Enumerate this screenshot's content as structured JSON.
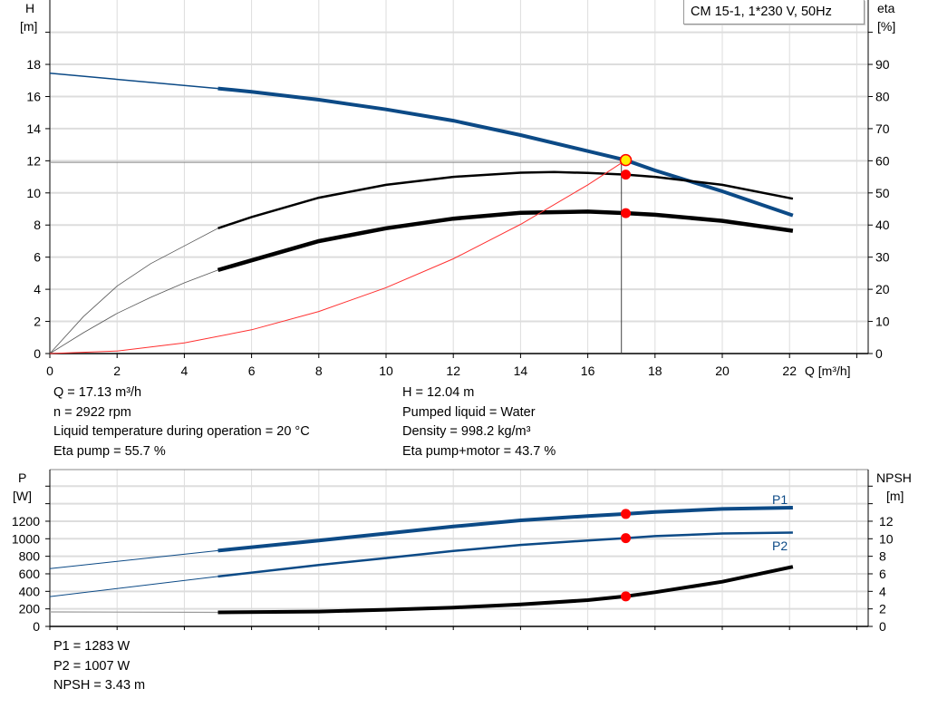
{
  "chart_data": [
    {
      "type": "line",
      "title": "CM 15-1, 1*230 V, 50Hz",
      "xlabel": "Q [m³/h]",
      "ylabel": "H [m]",
      "ylabel_name": "H",
      "ylabel_unit": "[m]",
      "y2label_name": "eta",
      "y2label_unit": "[%]",
      "xlim": [
        0,
        24
      ],
      "ylim": [
        0,
        20
      ],
      "y2lim": [
        0,
        100
      ],
      "xticks": [
        "0",
        "2",
        "4",
        "6",
        "8",
        "10",
        "12",
        "14",
        "16",
        "18",
        "20",
        "22"
      ],
      "yticks": [
        "0",
        "2",
        "4",
        "6",
        "8",
        "10",
        "12",
        "14",
        "16",
        "18"
      ],
      "y2ticks": [
        "0",
        "10",
        "20",
        "30",
        "40",
        "50",
        "60",
        "70",
        "80",
        "90"
      ],
      "grid": true,
      "duty_point": {
        "Q": 17.13,
        "H": 12.04,
        "eta_pump": 55.7,
        "eta_pump_motor": 43.7
      },
      "series": [
        {
          "axis": "H",
          "color": "#0c4a86",
          "x": [
            0,
            5,
            6,
            8,
            10,
            12,
            14,
            16,
            17.13,
            18,
            20,
            22.1
          ],
          "y": [
            17.45,
            16.5,
            16.3,
            15.8,
            15.2,
            14.5,
            13.6,
            12.6,
            12.04,
            11.4,
            10.1,
            8.6
          ]
        },
        {
          "axis": "eta",
          "color": "#000000",
          "x": [
            0,
            1,
            2,
            3,
            4,
            5,
            6,
            8,
            10,
            12,
            14,
            15,
            16,
            17.13,
            18,
            20,
            22.1
          ],
          "y": [
            0,
            11.5,
            21,
            28,
            33.5,
            39,
            42.5,
            48.5,
            52.5,
            55,
            56.3,
            56.5,
            56.2,
            55.7,
            55,
            52.5,
            48.2
          ]
        },
        {
          "axis": "eta",
          "color": "#000000",
          "x": [
            0,
            1,
            2,
            3,
            4,
            5,
            6,
            8,
            10,
            12,
            14,
            16,
            17.13,
            18,
            20,
            22.1
          ],
          "y": [
            0,
            6.5,
            12.5,
            17.5,
            22,
            26,
            29,
            35,
            39,
            42,
            43.8,
            44.2,
            43.7,
            43.2,
            41.3,
            38.2
          ]
        },
        {
          "axis": "H",
          "color": "#ff3030",
          "x": [
            0,
            2,
            4,
            6,
            8,
            10,
            12,
            14,
            16,
            17.13
          ],
          "y": [
            0,
            0.16,
            0.66,
            1.48,
            2.62,
            4.1,
            5.9,
            8.04,
            10.5,
            12.04
          ]
        }
      ]
    },
    {
      "type": "line",
      "ylabel_name": "P",
      "ylabel_unit": "[W]",
      "y2label_name": "NPSH",
      "y2label_unit": "[m]",
      "xlim": [
        0,
        24
      ],
      "ylim": [
        0,
        1800
      ],
      "y2lim": [
        0,
        18
      ],
      "yticks": [
        "0",
        "200",
        "400",
        "600",
        "800",
        "1000",
        "1200"
      ],
      "y2ticks": [
        "0",
        "2",
        "4",
        "6",
        "8",
        "10",
        "12"
      ],
      "grid": true,
      "duty_point": {
        "Q": 17.13,
        "P1": 1283,
        "P2": 1007,
        "NPSH": 3.43
      },
      "series": [
        {
          "name": "P1",
          "axis": "P",
          "color": "#0c4a86",
          "x": [
            0,
            5,
            8,
            10,
            12,
            14,
            16,
            17.13,
            18,
            20,
            22.1
          ],
          "y": [
            660,
            865,
            980,
            1060,
            1140,
            1210,
            1260,
            1283,
            1305,
            1340,
            1355
          ]
        },
        {
          "name": "P2",
          "axis": "P",
          "color": "#0c4a86",
          "x": [
            0,
            5,
            8,
            10,
            12,
            14,
            16,
            17.13,
            18,
            20,
            22.1
          ],
          "y": [
            340,
            570,
            700,
            780,
            860,
            930,
            980,
            1007,
            1030,
            1060,
            1070
          ]
        },
        {
          "axis": "NPSH",
          "color": "#000000",
          "x": [
            0,
            5,
            8,
            10,
            12,
            14,
            16,
            17.13,
            18,
            20,
            22.1
          ],
          "y": [
            1.65,
            1.6,
            1.7,
            1.9,
            2.15,
            2.5,
            3.0,
            3.43,
            3.9,
            5.1,
            6.8
          ]
        }
      ]
    }
  ],
  "info_top_left": [
    "Q = 17.13 m³/h",
    "n = 2922 rpm",
    "Liquid temperature during operation = 20 °C",
    "Eta pump = 55.7 %"
  ],
  "info_top_right": [
    "H = 12.04 m",
    "Pumped liquid = Water",
    "Density = 998.2 kg/m³",
    "Eta pump+motor = 43.7 %"
  ],
  "info_bottom": [
    "P1 = 1283 W",
    "P2 = 1007 W",
    "NPSH = 3.43 m"
  ]
}
